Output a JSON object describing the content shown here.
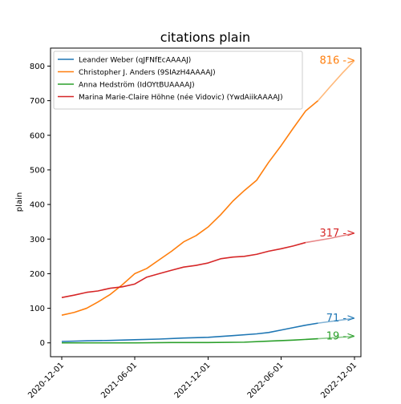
{
  "chart_data": {
    "type": "line",
    "title": "citations plain",
    "ylabel": "plain",
    "xlabel": "",
    "ylim": [
      -40,
      852
    ],
    "xlim": [
      "2020-11-03",
      "2022-12-17"
    ],
    "x_ticks": [
      "2020-12-01",
      "2021-06-01",
      "2021-12-01",
      "2022-06-01",
      "2022-12-01"
    ],
    "y_ticks": [
      0,
      100,
      200,
      300,
      400,
      500,
      600,
      700,
      800
    ],
    "grid": false,
    "legend_position": "top-left",
    "series": [
      {
        "name": "Leander Weber (qJFNfEcAAAAJ)",
        "color": "#1f77b4",
        "observed": [
          [
            "2020-12-01",
            4
          ],
          [
            "2021-02-01",
            6
          ],
          [
            "2021-04-01",
            7
          ],
          [
            "2021-06-01",
            9
          ],
          [
            "2021-08-01",
            11
          ],
          [
            "2021-10-01",
            14
          ],
          [
            "2021-12-01",
            16
          ],
          [
            "2022-02-01",
            21
          ],
          [
            "2022-04-01",
            26
          ],
          [
            "2022-05-01",
            30
          ],
          [
            "2022-06-01",
            37
          ],
          [
            "2022-07-01",
            44
          ],
          [
            "2022-08-01",
            51
          ],
          [
            "2022-09-01",
            57
          ]
        ],
        "projected": [
          [
            "2022-09-01",
            57
          ],
          [
            "2022-12-01",
            71
          ]
        ],
        "end_label": "71 ->"
      },
      {
        "name": "Christopher J. Anders (9SIAzH4AAAAJ)",
        "color": "#ff7f0e",
        "observed": [
          [
            "2020-12-01",
            80
          ],
          [
            "2021-01-01",
            88
          ],
          [
            "2021-02-01",
            100
          ],
          [
            "2021-03-01",
            118
          ],
          [
            "2021-04-01",
            140
          ],
          [
            "2021-05-01",
            168
          ],
          [
            "2021-06-01",
            200
          ],
          [
            "2021-07-01",
            215
          ],
          [
            "2021-08-01",
            240
          ],
          [
            "2021-09-01",
            265
          ],
          [
            "2021-10-01",
            292
          ],
          [
            "2021-11-01",
            310
          ],
          [
            "2021-12-01",
            335
          ],
          [
            "2022-01-01",
            370
          ],
          [
            "2022-02-01",
            410
          ],
          [
            "2022-03-01",
            440
          ],
          [
            "2022-04-01",
            470
          ],
          [
            "2022-05-01",
            522
          ],
          [
            "2022-06-01",
            570
          ],
          [
            "2022-07-01",
            620
          ],
          [
            "2022-08-01",
            670
          ],
          [
            "2022-09-01",
            700
          ]
        ],
        "projected": [
          [
            "2022-09-01",
            700
          ],
          [
            "2022-10-01",
            740
          ],
          [
            "2022-11-01",
            780
          ],
          [
            "2022-12-01",
            816
          ]
        ],
        "end_label": "816 ->"
      },
      {
        "name": "Anna Hedström (IdOYtBUAAAAJ)",
        "color": "#2ca02c",
        "observed": [
          [
            "2020-12-01",
            0
          ],
          [
            "2021-03-01",
            0
          ],
          [
            "2021-06-01",
            0
          ],
          [
            "2021-09-01",
            1
          ],
          [
            "2021-12-01",
            1
          ],
          [
            "2022-03-01",
            2
          ],
          [
            "2022-05-01",
            5
          ],
          [
            "2022-07-01",
            8
          ],
          [
            "2022-09-01",
            12
          ]
        ],
        "projected": [
          [
            "2022-09-01",
            12
          ],
          [
            "2022-12-01",
            19
          ]
        ],
        "end_label": "19 ->"
      },
      {
        "name": "Marina Marie-Claire Höhne (née Vidovic) (YwdAiikAAAAJ)",
        "color": "#d62728",
        "observed": [
          [
            "2020-12-01",
            131
          ],
          [
            "2021-01-01",
            138
          ],
          [
            "2021-02-01",
            146
          ],
          [
            "2021-03-01",
            150
          ],
          [
            "2021-04-01",
            158
          ],
          [
            "2021-05-01",
            162
          ],
          [
            "2021-06-01",
            170
          ],
          [
            "2021-07-01",
            190
          ],
          [
            "2021-08-01",
            200
          ],
          [
            "2021-09-01",
            210
          ],
          [
            "2021-10-01",
            219
          ],
          [
            "2021-11-01",
            224
          ],
          [
            "2021-12-01",
            231
          ],
          [
            "2022-01-01",
            243
          ],
          [
            "2022-02-01",
            248
          ],
          [
            "2022-03-01",
            250
          ],
          [
            "2022-04-01",
            256
          ],
          [
            "2022-05-01",
            265
          ],
          [
            "2022-06-01",
            272
          ],
          [
            "2022-07-01",
            280
          ],
          [
            "2022-08-01",
            290
          ]
        ],
        "projected": [
          [
            "2022-08-01",
            290
          ],
          [
            "2022-10-01",
            302
          ],
          [
            "2022-12-01",
            317
          ]
        ],
        "end_label": "317 ->"
      }
    ]
  }
}
